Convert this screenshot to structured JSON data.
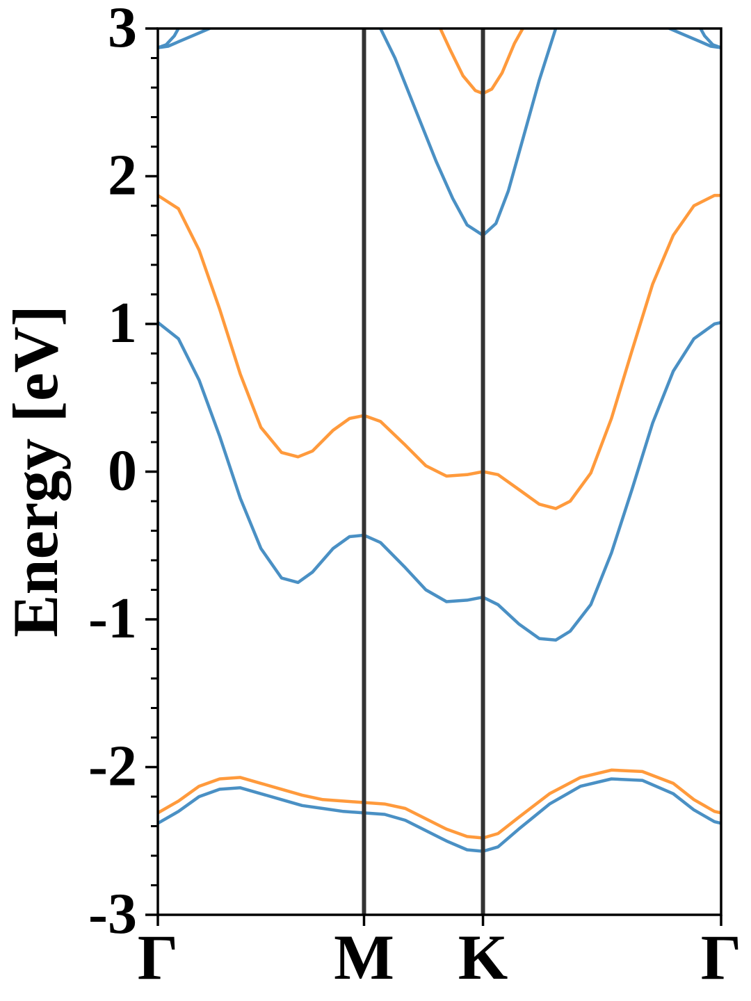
{
  "chart_data": {
    "type": "line",
    "title": "",
    "xlabel": "",
    "ylabel": "Energy [eV]",
    "ylim": [
      -3,
      3
    ],
    "grid": false,
    "legend": "none",
    "x_ticks": [
      {
        "label": "Γ",
        "pos": 0.0
      },
      {
        "label": "M",
        "pos": 1.0
      },
      {
        "label": "K",
        "pos": 1.577
      },
      {
        "label": "Γ",
        "pos": 2.732
      }
    ],
    "y_ticks": [
      {
        "label": "3",
        "value": 3
      },
      {
        "label": "2",
        "value": 2
      },
      {
        "label": "1",
        "value": 1
      },
      {
        "label": "0",
        "value": 0
      },
      {
        "label": "-1",
        "value": -1
      },
      {
        "label": "-2",
        "value": -2
      },
      {
        "label": "-3",
        "value": -3
      }
    ],
    "y_minor_step": 0.2,
    "vlines": [
      1.0,
      1.577
    ],
    "colors": {
      "blue": "#4a90c4",
      "orange": "#ff9a3c",
      "vline": "#333333",
      "axis": "#000000"
    },
    "series": [
      {
        "color": "blue",
        "points": [
          [
            0.0,
            1.01
          ],
          [
            0.1,
            0.9
          ],
          [
            0.2,
            0.62
          ],
          [
            0.3,
            0.24
          ],
          [
            0.4,
            -0.18
          ],
          [
            0.5,
            -0.52
          ],
          [
            0.6,
            -0.72
          ],
          [
            0.68,
            -0.75
          ],
          [
            0.75,
            -0.68
          ],
          [
            0.85,
            -0.52
          ],
          [
            0.93,
            -0.44
          ],
          [
            1.0,
            -0.43
          ],
          [
            1.08,
            -0.48
          ],
          [
            1.2,
            -0.65
          ],
          [
            1.3,
            -0.8
          ],
          [
            1.4,
            -0.88
          ],
          [
            1.5,
            -0.87
          ],
          [
            1.577,
            -0.85
          ],
          [
            1.65,
            -0.9
          ],
          [
            1.75,
            -1.03
          ],
          [
            1.85,
            -1.13
          ],
          [
            1.93,
            -1.14
          ],
          [
            2.0,
            -1.08
          ],
          [
            2.1,
            -0.9
          ],
          [
            2.2,
            -0.55
          ],
          [
            2.3,
            -0.12
          ],
          [
            2.4,
            0.33
          ],
          [
            2.5,
            0.68
          ],
          [
            2.6,
            0.9
          ],
          [
            2.7,
            1.0
          ],
          [
            2.732,
            1.01
          ]
        ]
      },
      {
        "color": "orange",
        "points": [
          [
            0.0,
            1.87
          ],
          [
            0.1,
            1.78
          ],
          [
            0.2,
            1.5
          ],
          [
            0.3,
            1.1
          ],
          [
            0.4,
            0.66
          ],
          [
            0.5,
            0.3
          ],
          [
            0.6,
            0.13
          ],
          [
            0.68,
            0.1
          ],
          [
            0.75,
            0.14
          ],
          [
            0.85,
            0.28
          ],
          [
            0.93,
            0.36
          ],
          [
            1.0,
            0.38
          ],
          [
            1.08,
            0.34
          ],
          [
            1.2,
            0.18
          ],
          [
            1.3,
            0.04
          ],
          [
            1.4,
            -0.03
          ],
          [
            1.5,
            -0.02
          ],
          [
            1.577,
            0.0
          ],
          [
            1.65,
            -0.02
          ],
          [
            1.75,
            -0.12
          ],
          [
            1.85,
            -0.22
          ],
          [
            1.93,
            -0.25
          ],
          [
            2.0,
            -0.2
          ],
          [
            2.1,
            -0.01
          ],
          [
            2.2,
            0.36
          ],
          [
            2.3,
            0.82
          ],
          [
            2.4,
            1.27
          ],
          [
            2.5,
            1.6
          ],
          [
            2.6,
            1.8
          ],
          [
            2.7,
            1.87
          ],
          [
            2.732,
            1.87
          ]
        ]
      },
      {
        "color": "blue",
        "points": [
          [
            0.0,
            -2.38
          ],
          [
            0.1,
            -2.3
          ],
          [
            0.2,
            -2.2
          ],
          [
            0.3,
            -2.15
          ],
          [
            0.4,
            -2.14
          ],
          [
            0.5,
            -2.18
          ],
          [
            0.6,
            -2.22
          ],
          [
            0.7,
            -2.26
          ],
          [
            0.8,
            -2.28
          ],
          [
            0.9,
            -2.3
          ],
          [
            1.0,
            -2.31
          ],
          [
            1.1,
            -2.32
          ],
          [
            1.2,
            -2.36
          ],
          [
            1.3,
            -2.43
          ],
          [
            1.4,
            -2.5
          ],
          [
            1.5,
            -2.56
          ],
          [
            1.577,
            -2.57
          ],
          [
            1.65,
            -2.54
          ],
          [
            1.75,
            -2.42
          ],
          [
            1.9,
            -2.25
          ],
          [
            2.05,
            -2.13
          ],
          [
            2.2,
            -2.08
          ],
          [
            2.35,
            -2.09
          ],
          [
            2.5,
            -2.18
          ],
          [
            2.6,
            -2.29
          ],
          [
            2.7,
            -2.37
          ],
          [
            2.732,
            -2.38
          ]
        ]
      },
      {
        "color": "orange",
        "points": [
          [
            0.0,
            -2.31
          ],
          [
            0.1,
            -2.23
          ],
          [
            0.2,
            -2.13
          ],
          [
            0.3,
            -2.08
          ],
          [
            0.4,
            -2.07
          ],
          [
            0.5,
            -2.11
          ],
          [
            0.6,
            -2.15
          ],
          [
            0.7,
            -2.19
          ],
          [
            0.8,
            -2.22
          ],
          [
            0.9,
            -2.23
          ],
          [
            1.0,
            -2.24
          ],
          [
            1.1,
            -2.25
          ],
          [
            1.2,
            -2.28
          ],
          [
            1.3,
            -2.35
          ],
          [
            1.4,
            -2.42
          ],
          [
            1.5,
            -2.47
          ],
          [
            1.577,
            -2.48
          ],
          [
            1.65,
            -2.45
          ],
          [
            1.75,
            -2.34
          ],
          [
            1.9,
            -2.18
          ],
          [
            2.05,
            -2.07
          ],
          [
            2.2,
            -2.02
          ],
          [
            2.35,
            -2.03
          ],
          [
            2.5,
            -2.11
          ],
          [
            2.6,
            -2.22
          ],
          [
            2.7,
            -2.3
          ],
          [
            2.732,
            -2.31
          ]
        ]
      },
      {
        "color": "blue",
        "points": [
          [
            0.0,
            2.87
          ],
          [
            0.05,
            2.88
          ],
          [
            0.1,
            2.91
          ],
          [
            0.2,
            2.97
          ],
          [
            0.25,
            3.0
          ]
        ]
      },
      {
        "color": "blue",
        "points": [
          [
            0.0,
            2.87
          ],
          [
            0.04,
            2.89
          ],
          [
            0.08,
            2.95
          ],
          [
            0.1,
            3.0
          ]
        ]
      },
      {
        "color": "blue",
        "points": [
          [
            2.482,
            3.0
          ],
          [
            2.532,
            2.97
          ],
          [
            2.632,
            2.91
          ],
          [
            2.682,
            2.88
          ],
          [
            2.732,
            2.87
          ]
        ]
      },
      {
        "color": "blue",
        "points": [
          [
            2.632,
            3.0
          ],
          [
            2.652,
            2.95
          ],
          [
            2.692,
            2.89
          ],
          [
            2.732,
            2.87
          ]
        ]
      },
      {
        "color": "orange",
        "points": [
          [
            1.37,
            3.0
          ],
          [
            1.42,
            2.85
          ],
          [
            1.48,
            2.68
          ],
          [
            1.54,
            2.58
          ],
          [
            1.577,
            2.56
          ],
          [
            1.62,
            2.59
          ],
          [
            1.67,
            2.7
          ],
          [
            1.73,
            2.9
          ],
          [
            1.77,
            3.0
          ]
        ]
      },
      {
        "color": "blue",
        "points": [
          [
            1.08,
            3.0
          ],
          [
            1.15,
            2.8
          ],
          [
            1.25,
            2.45
          ],
          [
            1.35,
            2.1
          ],
          [
            1.43,
            1.85
          ],
          [
            1.5,
            1.67
          ],
          [
            1.577,
            1.6
          ],
          [
            1.64,
            1.68
          ],
          [
            1.7,
            1.9
          ],
          [
            1.77,
            2.25
          ],
          [
            1.85,
            2.65
          ],
          [
            1.93,
            3.0
          ]
        ]
      }
    ]
  }
}
